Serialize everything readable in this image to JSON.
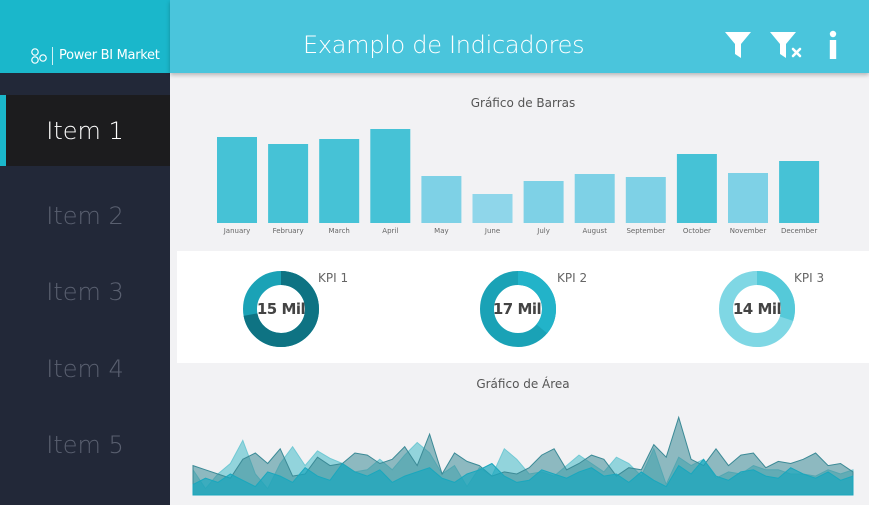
{
  "app": {
    "brand": "Power BI Market",
    "title": "Examplo de Indicadores",
    "accent": "#4ac5dc"
  },
  "sidebar": {
    "items": [
      {
        "label": "Item 1",
        "active": true
      },
      {
        "label": "Item 2",
        "active": false
      },
      {
        "label": "Item 3",
        "active": false
      },
      {
        "label": "Item 4",
        "active": false
      },
      {
        "label": "Item 5",
        "active": false
      }
    ]
  },
  "header": {
    "icons": [
      "filter-icon",
      "clear-filter-icon",
      "info-icon"
    ]
  },
  "bar_chart": {
    "title": "Gráfico de Barras"
  },
  "kpis": [
    {
      "label": "KPI 1",
      "value": "15 Mil",
      "fill": 0.72,
      "color": "#0e7383",
      "track": "#1aa2b6"
    },
    {
      "label": "KPI 2",
      "value": "17 Mil",
      "fill": 0.36,
      "color": "#22b3c9",
      "track": "#1aa2b6"
    },
    {
      "label": "KPI 3",
      "value": "14 Mil",
      "fill": 0.3,
      "color": "#55c9d9",
      "track": "#7fd7e4"
    }
  ],
  "area_chart": {
    "title": "Gráfico de Área"
  },
  "chart_data": [
    {
      "type": "bar",
      "title": "Gráfico de Barras",
      "categories": [
        "January",
        "February",
        "March",
        "April",
        "May",
        "June",
        "July",
        "August",
        "September",
        "October",
        "November",
        "December"
      ],
      "values": [
        86,
        79,
        84,
        94,
        47,
        29,
        42,
        49,
        46,
        69,
        50,
        62
      ],
      "colors": [
        "#46c2d6",
        "#46c2d6",
        "#46c2d6",
        "#46c2d6",
        "#7ed1e6",
        "#8fd6ea",
        "#7ed1e6",
        "#7ed1e6",
        "#7ed1e6",
        "#46c2d6",
        "#7ed1e6",
        "#46c2d6"
      ],
      "ylim": [
        0,
        100
      ]
    },
    {
      "type": "area",
      "title": "Gráfico de Área",
      "series": [
        {
          "values": [
            24,
            6,
            20,
            30,
            52,
            20,
            6,
            30,
            46,
            28,
            42,
            35,
            30,
            22,
            24,
            34,
            24,
            38,
            50,
            40,
            20,
            28,
            8,
            26,
            18,
            44,
            34,
            20,
            22,
            18,
            28,
            38,
            30,
            22,
            36,
            30,
            18,
            44,
            10,
            36,
            28,
            34,
            16,
            22,
            20,
            28,
            24,
            24,
            20,
            20,
            18,
            24,
            20,
            24
          ],
          "color": "#71c9d4",
          "opacity": 0.75
        },
        {
          "values": [
            28,
            24,
            20,
            16,
            34,
            40,
            30,
            44,
            18,
            20,
            36,
            28,
            30,
            40,
            38,
            30,
            34,
            46,
            28,
            58,
            20,
            40,
            32,
            28,
            18,
            22,
            20,
            26,
            38,
            44,
            24,
            30,
            38,
            34,
            18,
            26,
            24,
            48,
            36,
            74,
            34,
            28,
            44,
            28,
            38,
            40,
            26,
            32,
            30,
            34,
            40,
            28,
            30,
            22
          ],
          "color": "#3b8a96",
          "opacity": 0.55
        },
        {
          "values": [
            10,
            16,
            12,
            20,
            14,
            8,
            22,
            18,
            12,
            26,
            18,
            14,
            30,
            22,
            18,
            24,
            12,
            18,
            22,
            26,
            16,
            12,
            20,
            24,
            30,
            18,
            12,
            14,
            24,
            20,
            16,
            22,
            26,
            18,
            20,
            12,
            22,
            14,
            8,
            28,
            20,
            34,
            18,
            14,
            22,
            24,
            18,
            16,
            26,
            20,
            16,
            22,
            14,
            18
          ],
          "color": "#1aa7bd",
          "opacity": 0.7
        }
      ]
    }
  ]
}
